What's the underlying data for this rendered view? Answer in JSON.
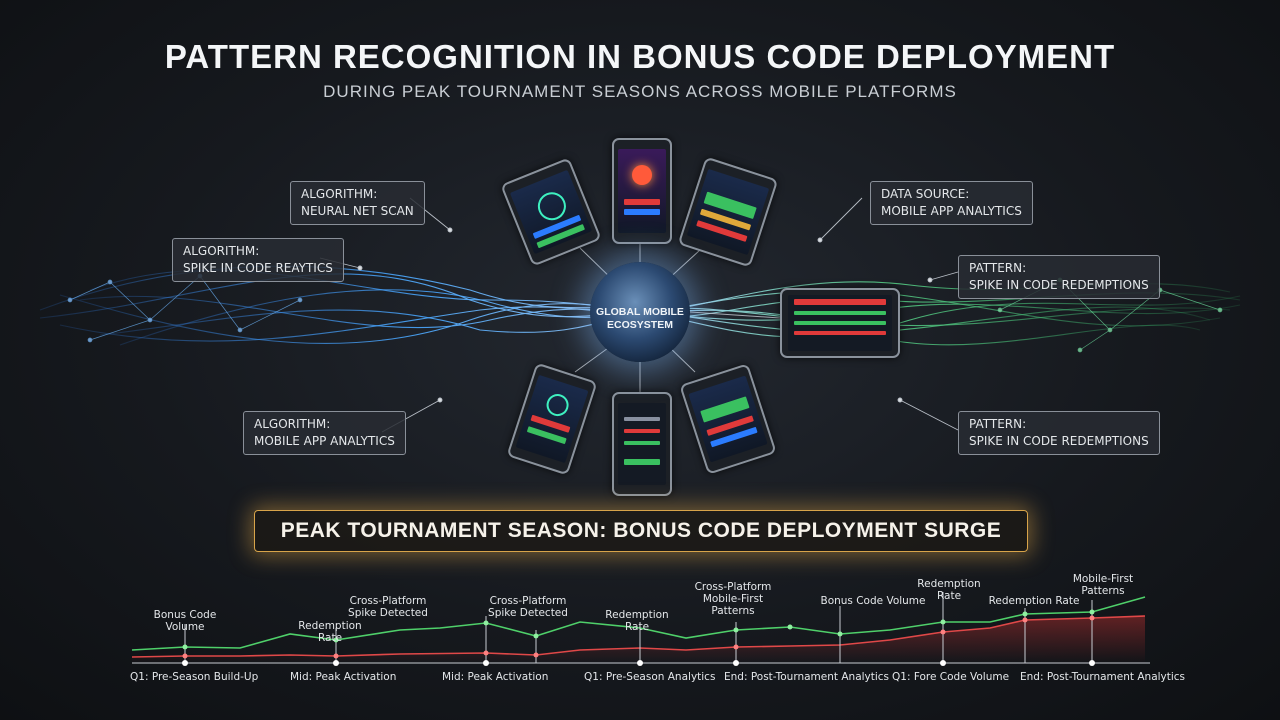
{
  "header": {
    "title": "PATTERN RECOGNITION IN BONUS CODE DEPLOYMENT",
    "subtitle": "DURING PEAK TOURNAMENT SEASONS ACROSS MOBILE PLATFORMS"
  },
  "hub": {
    "label": "GLOBAL MOBILE ECOSYSTEM"
  },
  "callouts": [
    {
      "id": "c1",
      "title": "ALGORITHM:",
      "body": "NEURAL NET SCAN"
    },
    {
      "id": "c2",
      "title": "ALGORITHM:",
      "body": "SPIKE IN CODE REAYTICS"
    },
    {
      "id": "c3",
      "title": "ALGORITHM:",
      "body": "MOBILE APP ANALYTICS"
    },
    {
      "id": "c4",
      "title": "DATA SOURCE:",
      "body": "MOBILE APP ANALYTICS"
    },
    {
      "id": "c5",
      "title": "PATTERN:",
      "body": "SPIKE IN CODE REDEMPTIONS"
    },
    {
      "id": "c6",
      "title": "PATTERN:",
      "body": "SPIKE IN CODE REDEMPTIONS"
    }
  ],
  "banner": {
    "text": "PEAK TOURNAMENT SEASON: BONUS CODE DEPLOYMENT SURGE"
  },
  "timeline": {
    "top_labels": [
      {
        "text": "Bonus Code Volume"
      },
      {
        "text": "Redemption Rate"
      },
      {
        "text": "Cross-Platform Spike Detected"
      },
      {
        "text": "Cross-Platform Spike Detected"
      },
      {
        "text": "Redemption Rate"
      },
      {
        "text": "Cross-Platform Mobile-First Patterns"
      },
      {
        "text": "Bonus Code Volume"
      },
      {
        "text": "Redemption Rate"
      },
      {
        "text": "Redemption Rate"
      },
      {
        "text": "Mobile-First Patterns"
      }
    ],
    "bottom_labels": [
      {
        "text": "Q1: Pre-Season Build-Up"
      },
      {
        "text": "Mid: Peak Activation"
      },
      {
        "text": "Mid: Peak Activation"
      },
      {
        "text": "Q1: Pre-Season Analytics"
      },
      {
        "text": "End: Post-Tournament Analytics"
      },
      {
        "text": "Q1: Fore Code Volume"
      },
      {
        "text": "End: Post-Tournament Analytics"
      }
    ],
    "colors": {
      "green": "#4fd06a",
      "red": "#e04848"
    }
  },
  "colors": {
    "blue_wave": "#4aa8ff",
    "green_wave": "#59d68a",
    "gold": "#d8a44a"
  }
}
